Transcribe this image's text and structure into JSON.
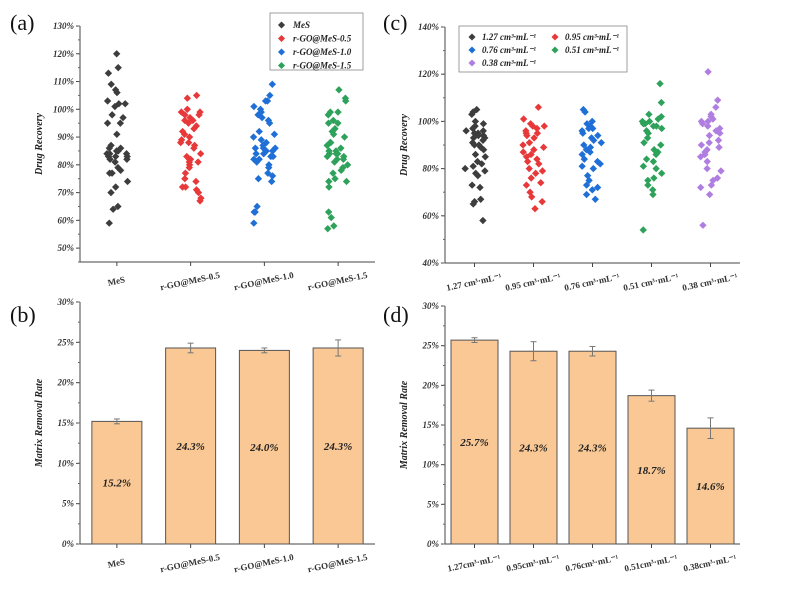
{
  "chart_data": [
    {
      "panel": "(a)",
      "type": "scatter",
      "ylabel": "Drug Recovery",
      "xlabel": "",
      "ylim": [
        45,
        130
      ],
      "yticks": [
        "50%",
        "60%",
        "70%",
        "80%",
        "90%",
        "100%",
        "110%",
        "120%",
        "130%"
      ],
      "categories": [
        "MeS",
        "r-GO@MeS-0.5",
        "r-GO@MeS-1.0",
        "r-GO@MeS-1.5"
      ],
      "legend_position": "top-right",
      "series": [
        {
          "name": "MeS",
          "color": "#3d3d3d",
          "values": [
            120,
            115,
            113,
            109,
            107,
            106,
            103,
            102,
            102,
            101,
            98,
            97,
            95,
            95,
            91,
            87,
            86,
            86,
            85,
            85,
            84,
            84,
            84,
            83,
            83,
            83,
            82,
            82,
            81,
            79,
            78,
            77,
            77,
            74,
            72,
            70,
            65,
            64,
            59
          ]
        },
        {
          "name": "r-GO@MeS-0.5",
          "color": "#e8393a",
          "values": [
            105,
            104,
            100,
            99,
            99,
            98,
            98,
            97,
            96,
            96,
            95,
            94,
            93,
            92,
            91,
            90,
            89,
            88,
            88,
            87,
            86,
            84,
            83,
            82,
            82,
            81,
            81,
            80,
            79,
            77,
            75,
            74,
            72,
            72,
            71,
            70,
            68,
            67
          ]
        },
        {
          "name": "r-GO@MeS-1.0",
          "color": "#1f6fd6",
          "values": [
            109,
            105,
            103,
            103,
            101,
            100,
            99,
            98,
            97,
            96,
            95,
            92,
            91,
            90,
            89,
            88,
            87,
            86,
            86,
            86,
            85,
            85,
            84,
            84,
            83,
            83,
            82,
            82,
            81,
            80,
            79,
            77,
            76,
            75,
            74,
            65,
            63,
            63,
            59
          ]
        },
        {
          "name": "r-GO@MeS-1.5",
          "color": "#2ea25a",
          "values": [
            107,
            104,
            103,
            99,
            99,
            98,
            96,
            95,
            95,
            93,
            92,
            91,
            90,
            88,
            88,
            87,
            86,
            85,
            85,
            84,
            84,
            84,
            83,
            83,
            82,
            82,
            81,
            80,
            79,
            78,
            77,
            75,
            74,
            74,
            72,
            63,
            61,
            58,
            57
          ]
        }
      ]
    },
    {
      "panel": "(b)",
      "type": "bar",
      "ylabel": "Matrix Removal Rate",
      "xlabel": "",
      "ylim": [
        0,
        30
      ],
      "yticks": [
        "0%",
        "5%",
        "10%",
        "15%",
        "20%",
        "25%",
        "30%"
      ],
      "categories": [
        "MeS",
        "r-GO@MeS-0.5",
        "r-GO@MeS-1.0",
        "r-GO@MeS-1.5"
      ],
      "values": [
        15.2,
        24.3,
        24.0,
        24.3
      ],
      "errors": [
        0.3,
        0.6,
        0.3,
        1.0
      ],
      "data_labels": [
        "15.2%",
        "24.3%",
        "24.0%",
        "24.3%"
      ],
      "bar_color": "#f9c894"
    },
    {
      "panel": "(c)",
      "type": "scatter",
      "ylabel": "Drug Recovery",
      "xlabel": "",
      "ylim": [
        40,
        140
      ],
      "yticks": [
        "40%",
        "60%",
        "80%",
        "100%",
        "120%",
        "140%"
      ],
      "categories": [
        "1.27 cm³·mL⁻¹",
        "0.95 cm³·mL⁻¹",
        "0.76 cm³·mL⁻¹",
        "0.51 cm³·mL⁻¹",
        "0.38 cm³·mL⁻¹"
      ],
      "legend_position": "top-left",
      "series": [
        {
          "name": "1.27 cm³·mL⁻¹",
          "color": "#3d3d3d",
          "values": [
            105,
            104,
            103,
            100,
            99,
            98,
            97,
            96,
            96,
            95,
            95,
            94,
            94,
            93,
            93,
            92,
            91,
            90,
            90,
            89,
            88,
            86,
            85,
            83,
            82,
            81,
            80,
            79,
            78,
            77,
            73,
            72,
            67,
            66,
            65,
            58
          ]
        },
        {
          "name": "0.95 cm³·mL⁻¹",
          "color": "#e8393a",
          "values": [
            106,
            101,
            99,
            98,
            98,
            97,
            96,
            95,
            95,
            94,
            93,
            91,
            90,
            89,
            88,
            87,
            86,
            85,
            84,
            83,
            82,
            80,
            79,
            78,
            76,
            74,
            73,
            70,
            68,
            66,
            63
          ]
        },
        {
          "name": "0.76 cm³·mL⁻¹",
          "color": "#1f6fd6",
          "values": [
            105,
            104,
            100,
            99,
            98,
            97,
            97,
            96,
            95,
            94,
            93,
            92,
            91,
            90,
            89,
            88,
            87,
            86,
            84,
            83,
            82,
            81,
            80,
            77,
            75,
            73,
            72,
            71,
            69,
            67
          ]
        },
        {
          "name": "0.51 cm³·mL⁻¹",
          "color": "#2ea25a",
          "values": [
            116,
            108,
            103,
            102,
            101,
            100,
            100,
            99,
            99,
            98,
            98,
            97,
            96,
            95,
            93,
            91,
            90,
            88,
            87,
            86,
            84,
            83,
            81,
            80,
            78,
            76,
            75,
            73,
            71,
            69,
            54
          ]
        },
        {
          "name": "0.38 cm³·mL⁻¹",
          "color": "#b07ee0",
          "values": [
            121,
            109,
            106,
            103,
            102,
            101,
            100,
            100,
            99,
            98,
            97,
            96,
            95,
            94,
            92,
            91,
            90,
            89,
            88,
            87,
            86,
            85,
            83,
            80,
            79,
            76,
            75,
            73,
            72,
            69,
            56
          ]
        }
      ]
    },
    {
      "panel": "(d)",
      "type": "bar",
      "ylabel": "Matrix Removal Rate",
      "xlabel": "",
      "ylim": [
        0,
        30
      ],
      "yticks": [
        "0%",
        "5%",
        "10%",
        "15%",
        "20%",
        "25%",
        "30%"
      ],
      "categories": [
        "1.27cm³·mL⁻¹",
        "0.95cm³·mL⁻¹",
        "0.76cm³·mL⁻¹",
        "0.51cm³·mL⁻¹",
        "0.38cm³·mL⁻¹"
      ],
      "values": [
        25.7,
        24.3,
        24.3,
        18.7,
        14.6
      ],
      "errors": [
        0.3,
        1.2,
        0.6,
        0.7,
        1.3
      ],
      "data_labels": [
        "25.7%",
        "24.3%",
        "24.3%",
        "18.7%",
        "14.6%"
      ],
      "bar_color": "#f9c894"
    }
  ]
}
